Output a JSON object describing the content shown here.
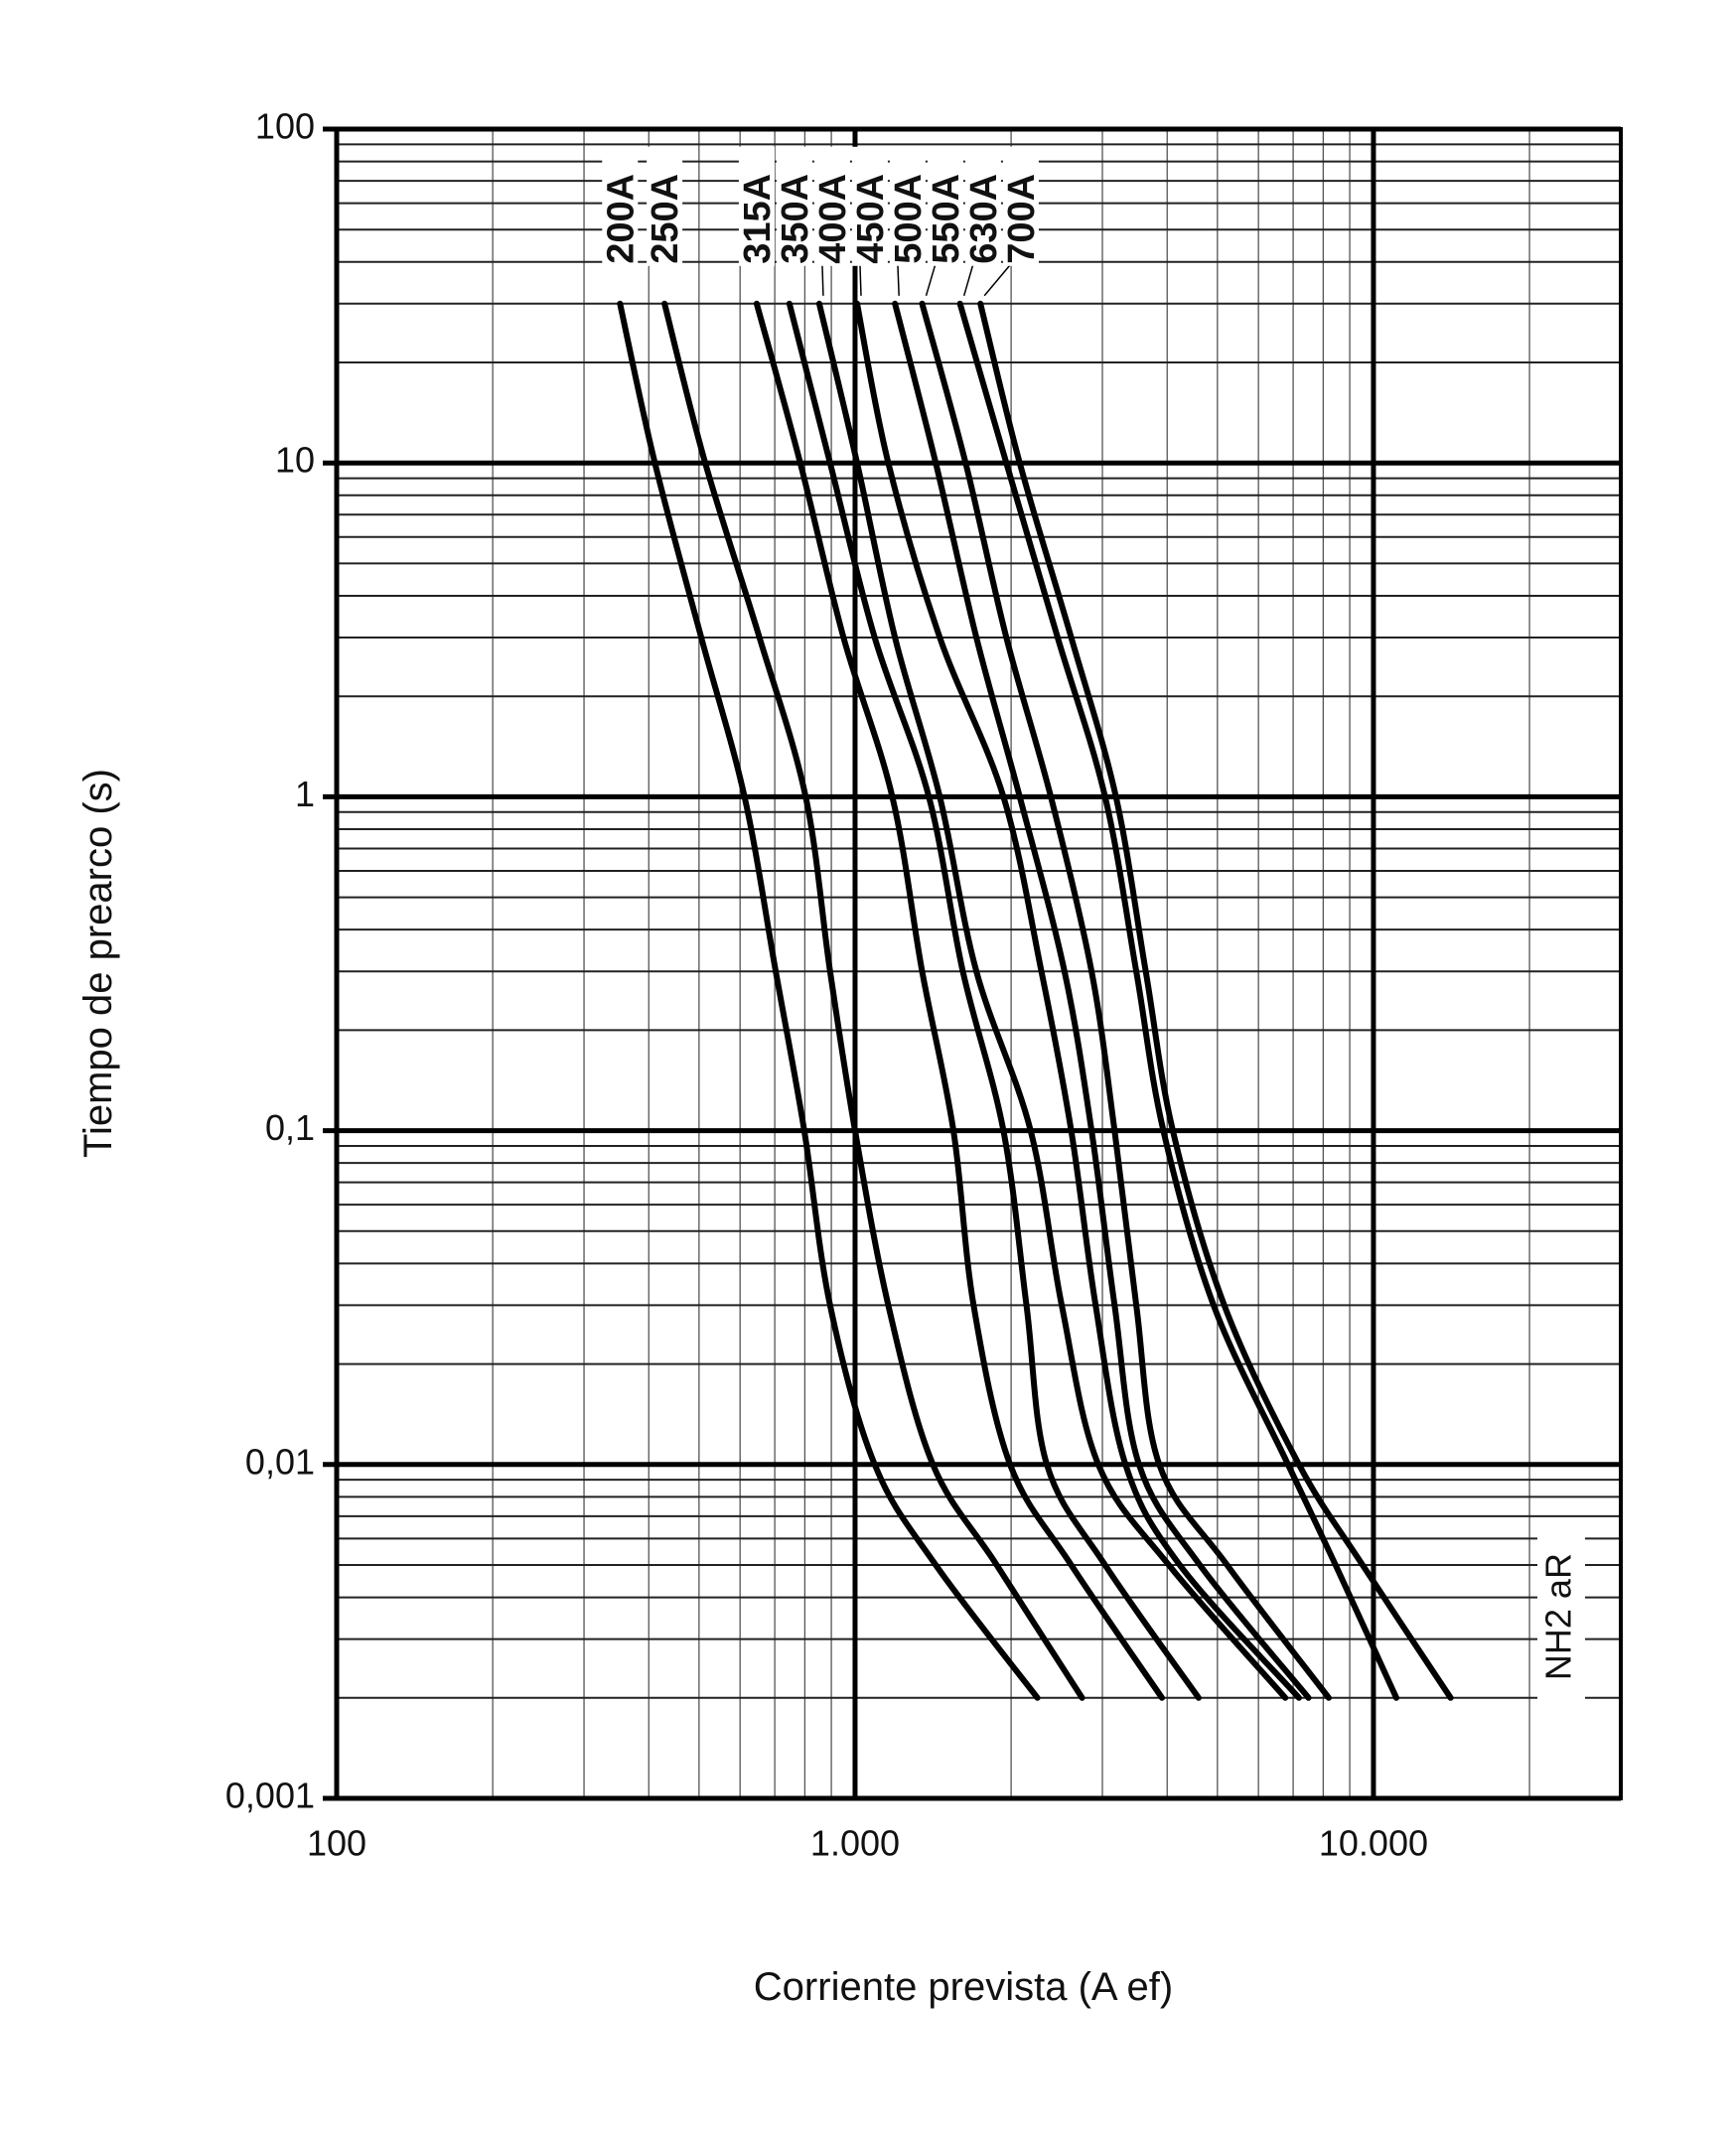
{
  "chart_data": {
    "type": "line",
    "x_label": "Corriente prevista (A ef)",
    "y_label": "Tiempo de prearco (s)",
    "annotation": "NH2 aR",
    "log_x": true,
    "log_y": true,
    "grid": true,
    "color": "#000000",
    "xlim": [
      100,
      30000
    ],
    "xticks": [
      100,
      {
        "value": 1000,
        "label": "1.000"
      },
      {
        "value": 10000,
        "label": "10.000"
      }
    ],
    "ylim": [
      0.001,
      100
    ],
    "yticks": [
      {
        "value": 0.001,
        "label": "0,001"
      },
      {
        "value": 0.01,
        "label": "0,01"
      },
      {
        "value": 0.1,
        "label": "0,1"
      },
      1,
      10,
      100
    ],
    "series": [
      {
        "name": "200A",
        "x": [
          352,
          411,
          505,
          612,
          703,
          798,
          895,
          1091,
          1431,
          2248
        ],
        "values": [
          30,
          10,
          3,
          1,
          0.3,
          0.1,
          0.03,
          0.01,
          0.005,
          0.002
        ]
      },
      {
        "name": "250A",
        "x": [
          429,
          514,
          654,
          803,
          895,
          1000,
          1159,
          1413,
          1876,
          2741
        ],
        "values": [
          30,
          10,
          3,
          1,
          0.3,
          0.1,
          0.03,
          0.01,
          0.005,
          0.002
        ]
      },
      {
        "name": "315A",
        "x": [
          646,
          784,
          950,
          1180,
          1347,
          1548,
          1693,
          1991,
          2612,
          3909
        ],
        "values": [
          30,
          10,
          3,
          1,
          0.3,
          0.1,
          0.03,
          0.01,
          0.005,
          0.002
        ]
      },
      {
        "name": "350A",
        "x": [
          747,
          895,
          1091,
          1388,
          1614,
          1933,
          2141,
          2344,
          3036,
          4600
        ],
        "values": [
          30,
          10,
          3,
          1,
          0.3,
          0.1,
          0.03,
          0.01,
          0.005,
          0.002
        ]
      },
      {
        "name": "400A",
        "x": [
          853,
          1009,
          1194,
          1457,
          1714,
          2181,
          2504,
          2946,
          4029,
          6761
        ],
        "values": [
          30,
          10,
          3,
          1,
          0.3,
          0.1,
          0.03,
          0.01,
          0.005,
          0.002
        ]
      },
      {
        "name": "450A",
        "x": [
          1009,
          1159,
          1457,
          1933,
          2288,
          2612,
          2911,
          3324,
          4230,
          7182
        ],
        "values": [
          30,
          10,
          3,
          1,
          0.3,
          0.1,
          0.03,
          0.01,
          0.005,
          0.002
        ]
      },
      {
        "name": "500A",
        "x": [
          1194,
          1431,
          1714,
          2078,
          2535,
          2859,
          3167,
          3530,
          4625,
          7495
        ],
        "values": [
          30,
          10,
          3,
          1,
          0.3,
          0.1,
          0.03,
          0.01,
          0.005,
          0.002
        ]
      },
      {
        "name": "550A",
        "x": [
          1347,
          1634,
          1958,
          2386,
          2859,
          3167,
          3487,
          3862,
          5220,
          8199
        ],
        "values": [
          30,
          10,
          3,
          1,
          0.3,
          0.1,
          0.03,
          0.01,
          0.005,
          0.002
        ]
      },
      {
        "name": "630A",
        "x": [
          1594,
          1958,
          2459,
          3036,
          3487,
          3933,
          4916,
          6842,
          8451,
          11070
        ],
        "values": [
          30,
          10,
          3,
          1,
          0.3,
          0.1,
          0.03,
          0.01,
          0.005,
          0.002
        ]
      },
      {
        "name": "700A",
        "x": [
          1745,
          2078,
          2612,
          3186,
          3637,
          4102,
          5155,
          7182,
          9528,
          14090
        ],
        "values": [
          30,
          10,
          3,
          1,
          0.3,
          0.1,
          0.03,
          0.01,
          0.005,
          0.002
        ]
      }
    ]
  }
}
